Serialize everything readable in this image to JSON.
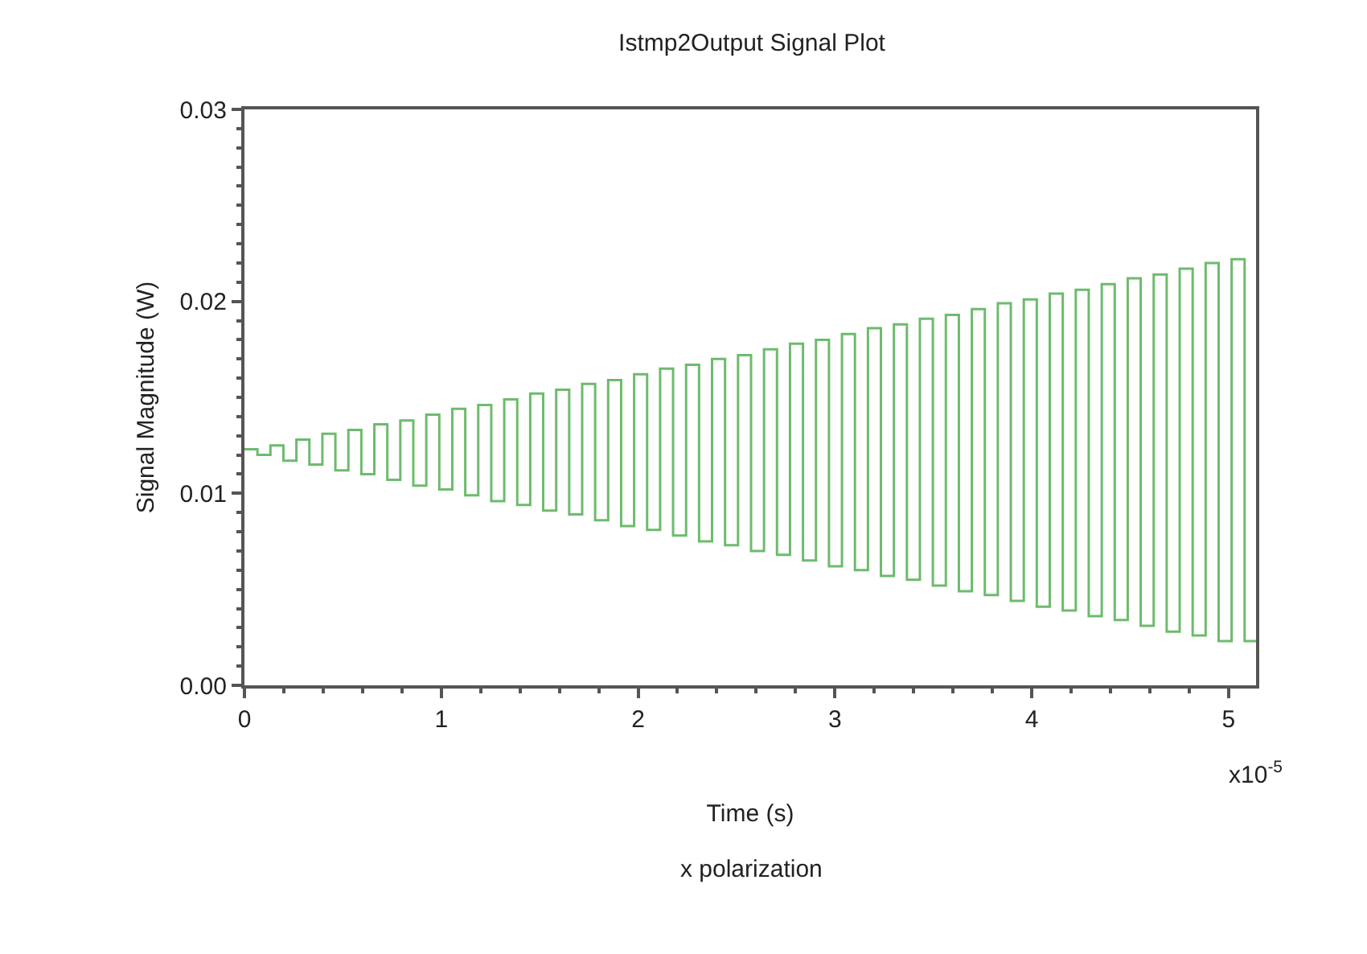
{
  "chart_data": {
    "type": "step",
    "title": "Istmp2Output Signal Plot",
    "xlabel": "Time (s)",
    "ylabel": "Signal Magnitude (W)",
    "annotations": [
      "x10$^{-5}$",
      "x polarization"
    ],
    "x": [
      0,
      0.066,
      0.132,
      0.198,
      0.264,
      0.33,
      0.396,
      0.462,
      0.528,
      0.594,
      0.66,
      0.726,
      0.792,
      0.858,
      0.924,
      0.99,
      1.056,
      1.122,
      1.188,
      1.254,
      1.32,
      1.386,
      1.452,
      1.518,
      1.584,
      1.65,
      1.716,
      1.782,
      1.848,
      1.914,
      1.98,
      2.046,
      2.112,
      2.178,
      2.244,
      2.31,
      2.376,
      2.442,
      2.508,
      2.574,
      2.64,
      2.706,
      2.772,
      2.838,
      2.904,
      2.97,
      3.036,
      3.102,
      3.168,
      3.234,
      3.3,
      3.366,
      3.432,
      3.498,
      3.564,
      3.63,
      3.696,
      3.762,
      3.828,
      3.894,
      3.96,
      4.026,
      4.092,
      4.158,
      4.224,
      4.29,
      4.356,
      4.422,
      4.488,
      4.554,
      4.62,
      4.686,
      4.752,
      4.818,
      4.884,
      4.95,
      5.016,
      5.082,
      5.14
    ],
    "series": [
      {
        "color": "#6dbb6d",
        "values": [
          0.0123,
          0.012,
          0.0125,
          0.0117,
          0.0128,
          0.0115,
          0.0131,
          0.0112,
          0.0133,
          0.011,
          0.0136,
          0.0107,
          0.0138,
          0.0104,
          0.0141,
          0.0102,
          0.0144,
          0.0099,
          0.0146,
          0.0096,
          0.0149,
          0.0094,
          0.0152,
          0.0091,
          0.0154,
          0.0089,
          0.0157,
          0.0086,
          0.0159,
          0.0083,
          0.0162,
          0.0081,
          0.0165,
          0.0078,
          0.0167,
          0.0075,
          0.017,
          0.0073,
          0.0172,
          0.007,
          0.0175,
          0.0068,
          0.0178,
          0.0065,
          0.018,
          0.0062,
          0.0183,
          0.006,
          0.0186,
          0.0057,
          0.0188,
          0.0055,
          0.0191,
          0.0052,
          0.0193,
          0.0049,
          0.0196,
          0.0047,
          0.0199,
          0.0044,
          0.0201,
          0.0041,
          0.0204,
          0.0039,
          0.0206,
          0.0036,
          0.0209,
          0.0034,
          0.0212,
          0.0031,
          0.0214,
          0.0028,
          0.0217,
          0.0026,
          0.022,
          0.0023,
          0.0222,
          0.0023,
          0.0023
        ]
      }
    ],
    "xlim": [
      0,
      5.14
    ],
    "xticks": [
      0,
      1,
      2,
      3,
      4,
      5
    ],
    "ylim": [
      0,
      0.03
    ],
    "yticks": [
      {
        "value": 0,
        "label": "0.00"
      },
      {
        "value": 0.01,
        "label": "0.01"
      },
      {
        "value": 0.02,
        "label": "0.02"
      },
      {
        "value": 0.03,
        "label": "0.03"
      }
    ],
    "line_style": "solid",
    "marker": "none"
  }
}
